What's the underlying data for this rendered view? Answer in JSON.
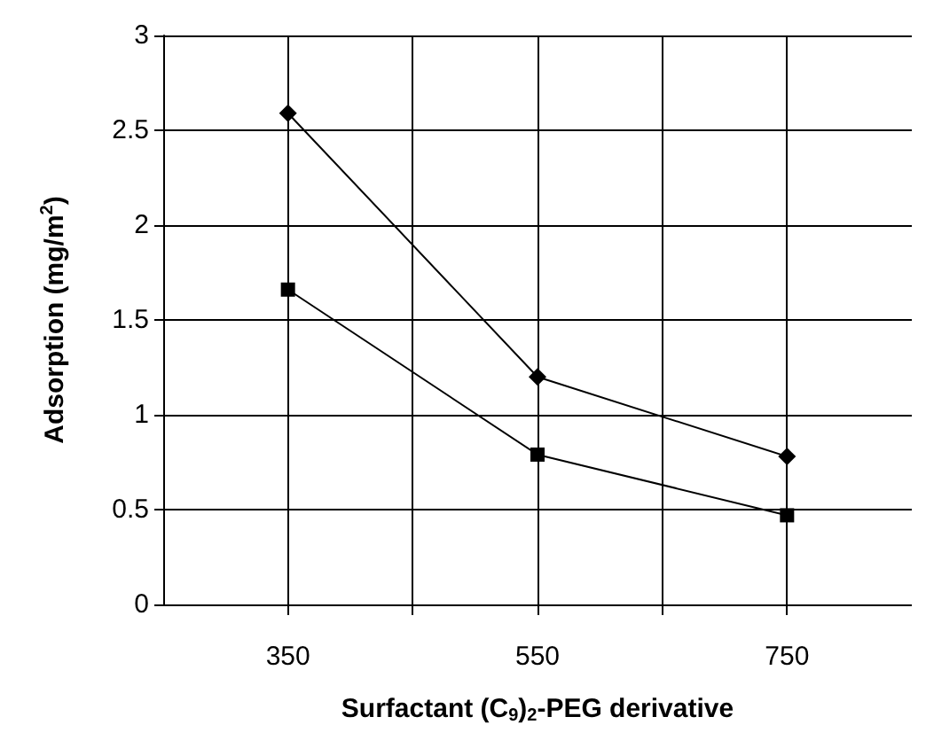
{
  "chart_data": {
    "type": "line",
    "xlabel": "Surfactant (C$_{9}$)$_{2}$-PEG derivative",
    "ylabel": "Adsorption (mg/m$^{2}$)",
    "x": [
      350,
      550,
      750
    ],
    "series": [
      {
        "color": "#000000",
        "marker": "diamond",
        "values": [
          2.59,
          1.2,
          0.78
        ]
      },
      {
        "color": "#000000",
        "marker": "square",
        "values": [
          1.66,
          0.79,
          0.47
        ]
      }
    ],
    "xlim": [
      250,
      850
    ],
    "xticks": [
      350,
      {
        "value": 450,
        "label": null
      },
      550,
      {
        "value": 650,
        "label": null
      },
      750
    ],
    "ylim": [
      0,
      3
    ],
    "yticks": [
      0,
      0.5,
      1,
      1.5,
      2,
      2.5,
      3
    ],
    "grid": true,
    "line_style": "solid"
  }
}
